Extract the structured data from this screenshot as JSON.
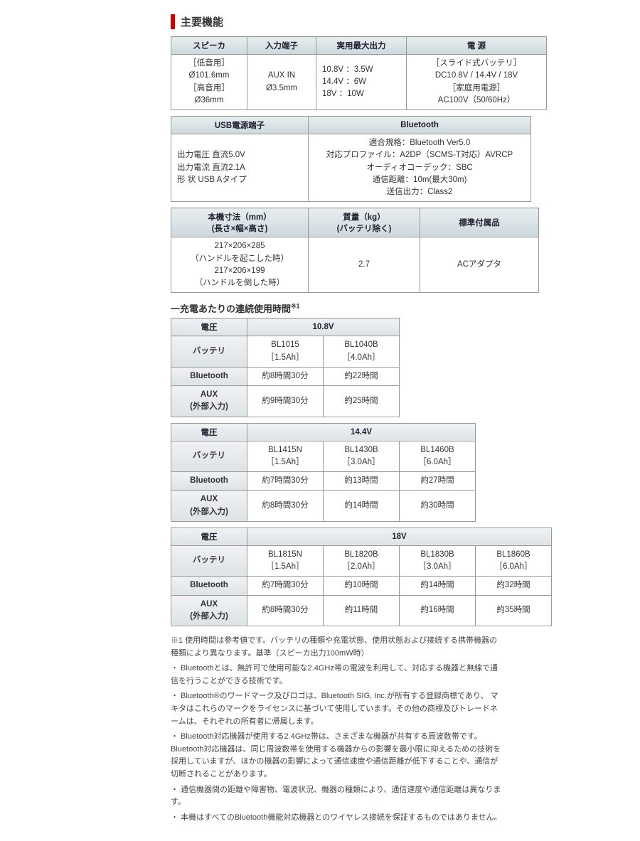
{
  "title": "主要機能",
  "spec1": {
    "headers": [
      "スピーカ",
      "入力端子",
      "実用最大出力",
      "電 源"
    ],
    "cells": [
      "［低音用］\nØ101.6mm\n［高音用］\nØ36mm",
      "AUX IN\nØ3.5mm",
      "10.8V ：3.5W\n14.4V ：6W\n18V ：10W",
      "［スライド式バッテリ］\nDC10.8V / 14.4V / 18V\n［家庭用電源］\nAC100V（50/60Hz）"
    ]
  },
  "spec2": {
    "headers": [
      "USB電源端子",
      "Bluetooth"
    ],
    "cells": [
      "出力電圧 直流5.0V\n出力電流 直流2.1A\n形 状 USB Aタイプ",
      "適合規格：Bluetooth Ver5.0\n対応プロファイル：A2DP（SCMS-T対応）AVRCP\nオーディオコーデック：SBC\n通信距離：10m(最大30m)\n送信出力：Class2"
    ]
  },
  "spec3": {
    "headers": [
      "本機寸法（mm）\n(長さ×幅×高さ)",
      "質量（kg）\n(バッテリ除く)",
      "標準付属品"
    ],
    "cells": [
      "217×206×285\n（ハンドルを起こした時）\n217×206×199\n（ハンドルを倒した時）",
      "2.7",
      "ACアダプタ"
    ]
  },
  "runtime_heading": "一充電あたりの連続使用時間",
  "runtime_sup": "※1",
  "rt108": {
    "voltage_label": "電圧",
    "voltage": "10.8V",
    "rows": [
      {
        "label": "バッテリ",
        "cells": [
          "BL1015\n［1.5Ah］",
          "BL1040B\n［4.0Ah］"
        ]
      },
      {
        "label": "Bluetooth",
        "cells": [
          "約8時間30分",
          "約22時間"
        ]
      },
      {
        "label": "AUX\n(外部入力)",
        "cells": [
          "約9時間30分",
          "約25時間"
        ]
      }
    ]
  },
  "rt144": {
    "voltage_label": "電圧",
    "voltage": "14.4V",
    "rows": [
      {
        "label": "バッテリ",
        "cells": [
          "BL1415N\n［1.5Ah］",
          "BL1430B\n［3.0Ah］",
          "BL1460B\n［6.0Ah］"
        ]
      },
      {
        "label": "Bluetooth",
        "cells": [
          "約7時間30分",
          "約13時間",
          "約27時間"
        ]
      },
      {
        "label": "AUX\n(外部入力)",
        "cells": [
          "約8時間30分",
          "約14時間",
          "約30時間"
        ]
      }
    ]
  },
  "rt18": {
    "voltage_label": "電圧",
    "voltage": "18V",
    "rows": [
      {
        "label": "バッテリ",
        "cells": [
          "BL1815N\n［1.5Ah］",
          "BL1820B\n［2.0Ah］",
          "BL1830B\n［3.0Ah］",
          "BL1860B\n［6.0Ah］"
        ]
      },
      {
        "label": "Bluetooth",
        "cells": [
          "約7時間30分",
          "約10時間",
          "約14時間",
          "約32時間"
        ]
      },
      {
        "label": "AUX\n(外部入力)",
        "cells": [
          "約8時間30分",
          "約11時間",
          "約16時間",
          "約35時間"
        ]
      }
    ]
  },
  "notes": [
    "※1 使用時間は参考値です。バッテリの種類や充電状態、使用状態および接続する携帯機器の種類により異なります。基準（スピーカ出力100mW時）",
    "・ Bluetoothとは、無許可で使用可能な2.4GHz帯の電波を利用して、対応する機器と無線で通信を行うことができる技術です。",
    "・ Bluetooth®のワードマーク及びロゴは、Bluetooth SIG, Inc.が所有する登録商標であり、 マキタはこれらのマークをライセンスに基づいて使用しています。その他の商標及びトレードネームは、それぞれの所有者に帰属します。",
    "・ Bluetooth対応機器が使用する2.4GHz帯は、さまざまな機器が共有する周波数帯です。Bluetooth対応機器は、同じ周波数帯を使用する機器からの影響を最小限に抑えるための技術を採用していますが、ほかの機器の影響によって通信速度や通信距離が低下することや、通信が切断されることがあります。",
    "・ 通信機器間の距離や障害物、電波状況、機器の種類により、通信速度や通信距離は異なります。",
    "・ 本機はすべてのBluetooth機能対応機器とのワイヤレス接続を保証するものではありません。"
  ]
}
